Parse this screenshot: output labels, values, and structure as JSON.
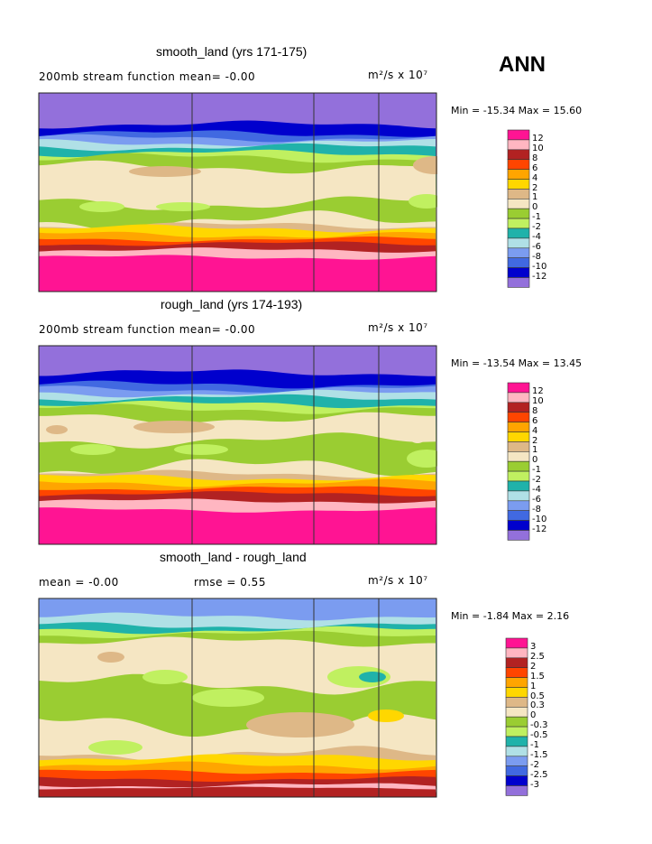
{
  "season": "ANN",
  "colors": [
    "#FF1493",
    "#FFB6C1",
    "#B22222",
    "#FF4500",
    "#FFA500",
    "#FFD700",
    "#DEB887",
    "#F5E6C3",
    "#9ACD32",
    "#C0F060",
    "#20B2AA",
    "#B0E0E6",
    "#7B9CF0",
    "#4169E1",
    "#0000CD",
    "#9370DB"
  ],
  "chart_data": [
    {
      "type": "heatmap",
      "title": "smooth_land (yrs 171-175)",
      "subtitle": "200mb stream function  mean=  -0.00",
      "units": "m²/s x 10⁷",
      "min_max": "Min = -15.34 Max =  15.60",
      "legend_labels": [
        "12",
        "10",
        "8",
        "6",
        "4",
        "2",
        "1",
        "0",
        "-1",
        "-2",
        "-4",
        "-6",
        "-8",
        "-10",
        "-12"
      ]
    },
    {
      "type": "heatmap",
      "title": "rough_land (yrs 174-193)",
      "subtitle": "200mb stream function  mean=  -0.00",
      "units": "m²/s x 10⁷",
      "min_max": "Min = -13.54 Max =  13.45",
      "legend_labels": [
        "12",
        "10",
        "8",
        "6",
        "4",
        "2",
        "1",
        "0",
        "-1",
        "-2",
        "-4",
        "-6",
        "-8",
        "-10",
        "-12"
      ]
    },
    {
      "type": "heatmap",
      "title": "smooth_land - rough_land",
      "subtitle": "mean =  -0.00",
      "rmse": "rmse =    0.55",
      "units": "m²/s x 10⁷",
      "min_max": "Min =  -1.84 Max =   2.16",
      "legend_labels": [
        "3",
        "2.5",
        "2",
        "1.5",
        "1",
        "0.5",
        "0.3",
        "0",
        "-0.3",
        "-0.5",
        "-1",
        "-1.5",
        "-2",
        "-2.5",
        "-3"
      ]
    }
  ]
}
